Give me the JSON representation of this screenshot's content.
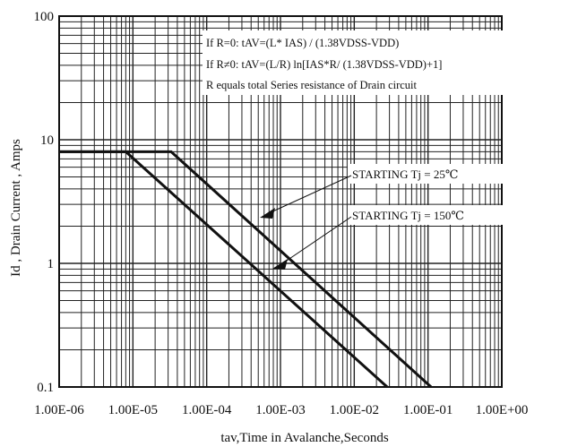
{
  "chart_data": {
    "type": "line",
    "x_scale": "log",
    "y_scale": "log",
    "xlim": [
      1e-06,
      1
    ],
    "ylim": [
      0.1,
      100
    ],
    "grid": true,
    "xlabel": "tav,Time in Avalanche,Seconds",
    "ylabel": "Id , Drain Current , Amps",
    "x_ticks": [
      1e-06,
      1e-05,
      0.0001,
      0.001,
      0.01,
      0.1,
      1
    ],
    "x_tick_labels": [
      "1.00E-06",
      "1.00E-05",
      "1.00E-04",
      "1.00E-03",
      "1.00E-02",
      "1.00E-01",
      "1.00E+00"
    ],
    "y_ticks": [
      0.1,
      1,
      10,
      100
    ],
    "y_tick_labels": [
      "0.1",
      "1",
      "10",
      "100"
    ],
    "annotation_lines": [
      "If R=0: tAV=(L* IAS) / (1.38VDSS-VDD)",
      "If R≠0: tAV=(L/R) ln[IAS*R/ (1.38VDSS-VDD)+1]",
      "R equals total Series resistance of Drain circuit"
    ],
    "series": [
      {
        "name": "STARTING Tj = 25℃",
        "x": [
          1e-06,
          3.3e-05,
          0.11
        ],
        "y": [
          8,
          8,
          0.1
        ]
      },
      {
        "name": "STARTING Tj = 150℃",
        "x": [
          1e-06,
          8e-06,
          0.028
        ],
        "y": [
          8,
          8,
          0.1
        ]
      }
    ]
  }
}
